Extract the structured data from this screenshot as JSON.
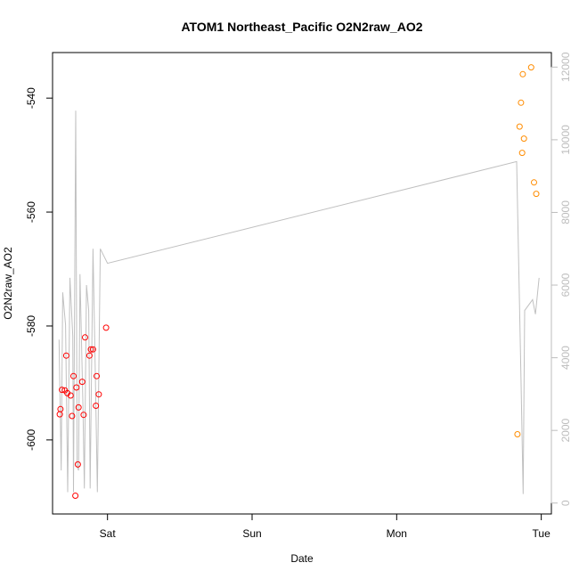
{
  "chart_data": {
    "type": "scatter",
    "title": "ATOM1 Northeast_Pacific O2N2raw_AO2",
    "xlabel": "Date",
    "ylabel": "O2N2raw_AO2",
    "x_ticks": [
      "Sat",
      "Sun",
      "Mon",
      "Tue"
    ],
    "x_tick_positions_days": [
      1,
      2,
      3,
      4
    ],
    "xlim_days": [
      0.62,
      4.07
    ],
    "ylim": [
      -613,
      -532
    ],
    "y_ticks": [
      -540,
      -560,
      -580,
      -600
    ],
    "y2lim": [
      -300,
      12400
    ],
    "y2_ticks": [
      0,
      2000,
      4000,
      6000,
      8000,
      10000,
      12000
    ],
    "y2_tick_labels": [
      "0",
      "2000",
      "4000",
      "6000",
      "8000",
      "10000",
      "12000"
    ],
    "grid": false,
    "series": [
      {
        "marker": "open-circle",
        "color": "#ff0000",
        "points": [
          [
            0.67,
            -595.5
          ],
          [
            0.675,
            -594.6
          ],
          [
            0.685,
            -591.2
          ],
          [
            0.705,
            -591.3
          ],
          [
            0.715,
            -585.2
          ],
          [
            0.722,
            -591.8
          ],
          [
            0.745,
            -592.2
          ],
          [
            0.755,
            -595.8
          ],
          [
            0.765,
            -588.8
          ],
          [
            0.778,
            -609.8
          ],
          [
            0.785,
            -590.8
          ],
          [
            0.795,
            -604.3
          ],
          [
            0.8,
            -594.3
          ],
          [
            0.825,
            -589.8
          ],
          [
            0.835,
            -595.6
          ],
          [
            0.845,
            -582.0
          ],
          [
            0.875,
            -585.2
          ],
          [
            0.885,
            -584.1
          ],
          [
            0.9,
            -584.1
          ],
          [
            0.92,
            -594.0
          ],
          [
            0.925,
            -588.8
          ],
          [
            0.94,
            -592.0
          ],
          [
            0.99,
            -580.3
          ]
        ]
      },
      {
        "marker": "open-circle",
        "color": "#ff8c00",
        "points": [
          [
            3.835,
            -599.0
          ],
          [
            3.85,
            -545.0
          ],
          [
            3.86,
            -540.8
          ],
          [
            3.868,
            -549.6
          ],
          [
            3.872,
            -535.8
          ],
          [
            3.88,
            -547.1
          ],
          [
            3.93,
            -534.6
          ],
          [
            3.95,
            -554.8
          ],
          [
            3.965,
            -556.8
          ]
        ]
      },
      {
        "axis": "right",
        "line": true,
        "color": "#c0c0c0",
        "points": [
          [
            0.665,
            4500
          ],
          [
            0.68,
            900
          ],
          [
            0.69,
            5800
          ],
          [
            0.71,
            4900
          ],
          [
            0.725,
            300
          ],
          [
            0.74,
            6200
          ],
          [
            0.76,
            4600
          ],
          [
            0.765,
            300
          ],
          [
            0.78,
            10800
          ],
          [
            0.79,
            1000
          ],
          [
            0.8,
            900
          ],
          [
            0.81,
            6300
          ],
          [
            0.83,
            2700
          ],
          [
            0.84,
            400
          ],
          [
            0.855,
            6000
          ],
          [
            0.87,
            5300
          ],
          [
            0.88,
            400
          ],
          [
            0.9,
            7000
          ],
          [
            0.915,
            3700
          ],
          [
            0.93,
            300
          ],
          [
            0.95,
            7000
          ],
          [
            1.0,
            6600
          ],
          [
            3.83,
            9400
          ],
          [
            3.86,
            3400
          ],
          [
            3.875,
            250
          ],
          [
            3.885,
            5300
          ],
          [
            3.94,
            5600
          ],
          [
            3.96,
            5200
          ],
          [
            3.985,
            6200
          ]
        ]
      }
    ]
  }
}
